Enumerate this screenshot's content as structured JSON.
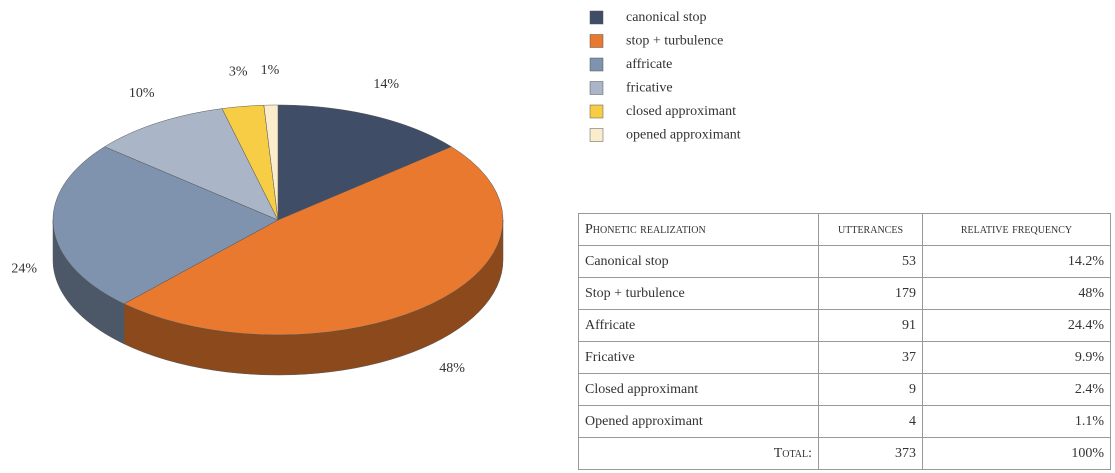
{
  "chart_data": {
    "type": "pie",
    "categories": [
      "canonical stop",
      "stop + turbulence",
      "affricate",
      "fricative",
      "closed approximant",
      "opened approximant"
    ],
    "values": [
      14,
      48,
      24,
      10,
      3,
      1
    ],
    "value_labels": [
      "14%",
      "48%",
      "24%",
      "10%",
      "3%",
      "1%"
    ],
    "colors": [
      "#3f4d66",
      "#e8792f",
      "#7f92ae",
      "#aab6c8",
      "#f7cd46",
      "#fbeccc"
    ],
    "legend": "right"
  },
  "table": {
    "header": [
      "Phonetic realization",
      "utterances",
      "relative frequency"
    ],
    "rows": [
      [
        "Canonical stop",
        "53",
        "14.2%"
      ],
      [
        "Stop + turbulence",
        "179",
        "48%"
      ],
      [
        "Affricate",
        "91",
        "24.4%"
      ],
      [
        "Fricative",
        "37",
        "9.9%"
      ],
      [
        "Closed approximant",
        "9",
        "2.4%"
      ],
      [
        "Opened approximant",
        "4",
        "1.1%"
      ]
    ],
    "total": [
      "Total:",
      "373",
      "100%"
    ]
  }
}
